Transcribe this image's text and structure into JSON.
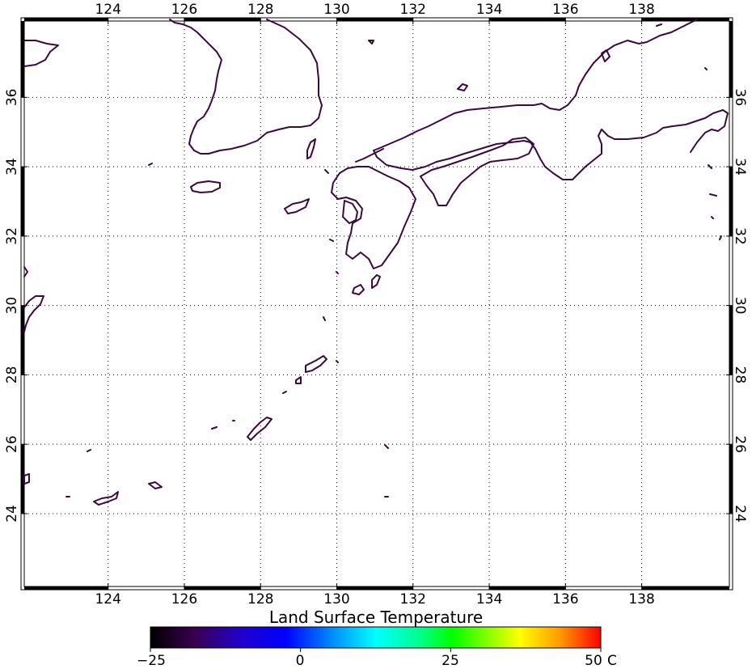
{
  "map": {
    "lon_range": [
      121.8,
      140.3
    ],
    "lat_range": [
      21.9,
      38.2
    ],
    "lon_ticks": [
      124,
      126,
      128,
      130,
      132,
      134,
      136,
      138
    ],
    "lat_ticks": [
      24,
      26,
      28,
      30,
      32,
      34,
      36
    ],
    "grid": true,
    "coastline_color": "#3a0a3e"
  },
  "colorbar": {
    "title": "Land Surface Temperature",
    "min": -25,
    "max": 50,
    "unit": "C",
    "tick_labels": [
      "−25",
      "0",
      "25",
      "50"
    ],
    "tick_values": [
      -25,
      0,
      25,
      50
    ],
    "stops": [
      "#000000",
      "#3a0050",
      "#2200cc",
      "#0000ff",
      "#0088ff",
      "#00ffff",
      "#00ff88",
      "#00ff00",
      "#88ff00",
      "#ffff00",
      "#ff9900",
      "#ff0000"
    ]
  }
}
